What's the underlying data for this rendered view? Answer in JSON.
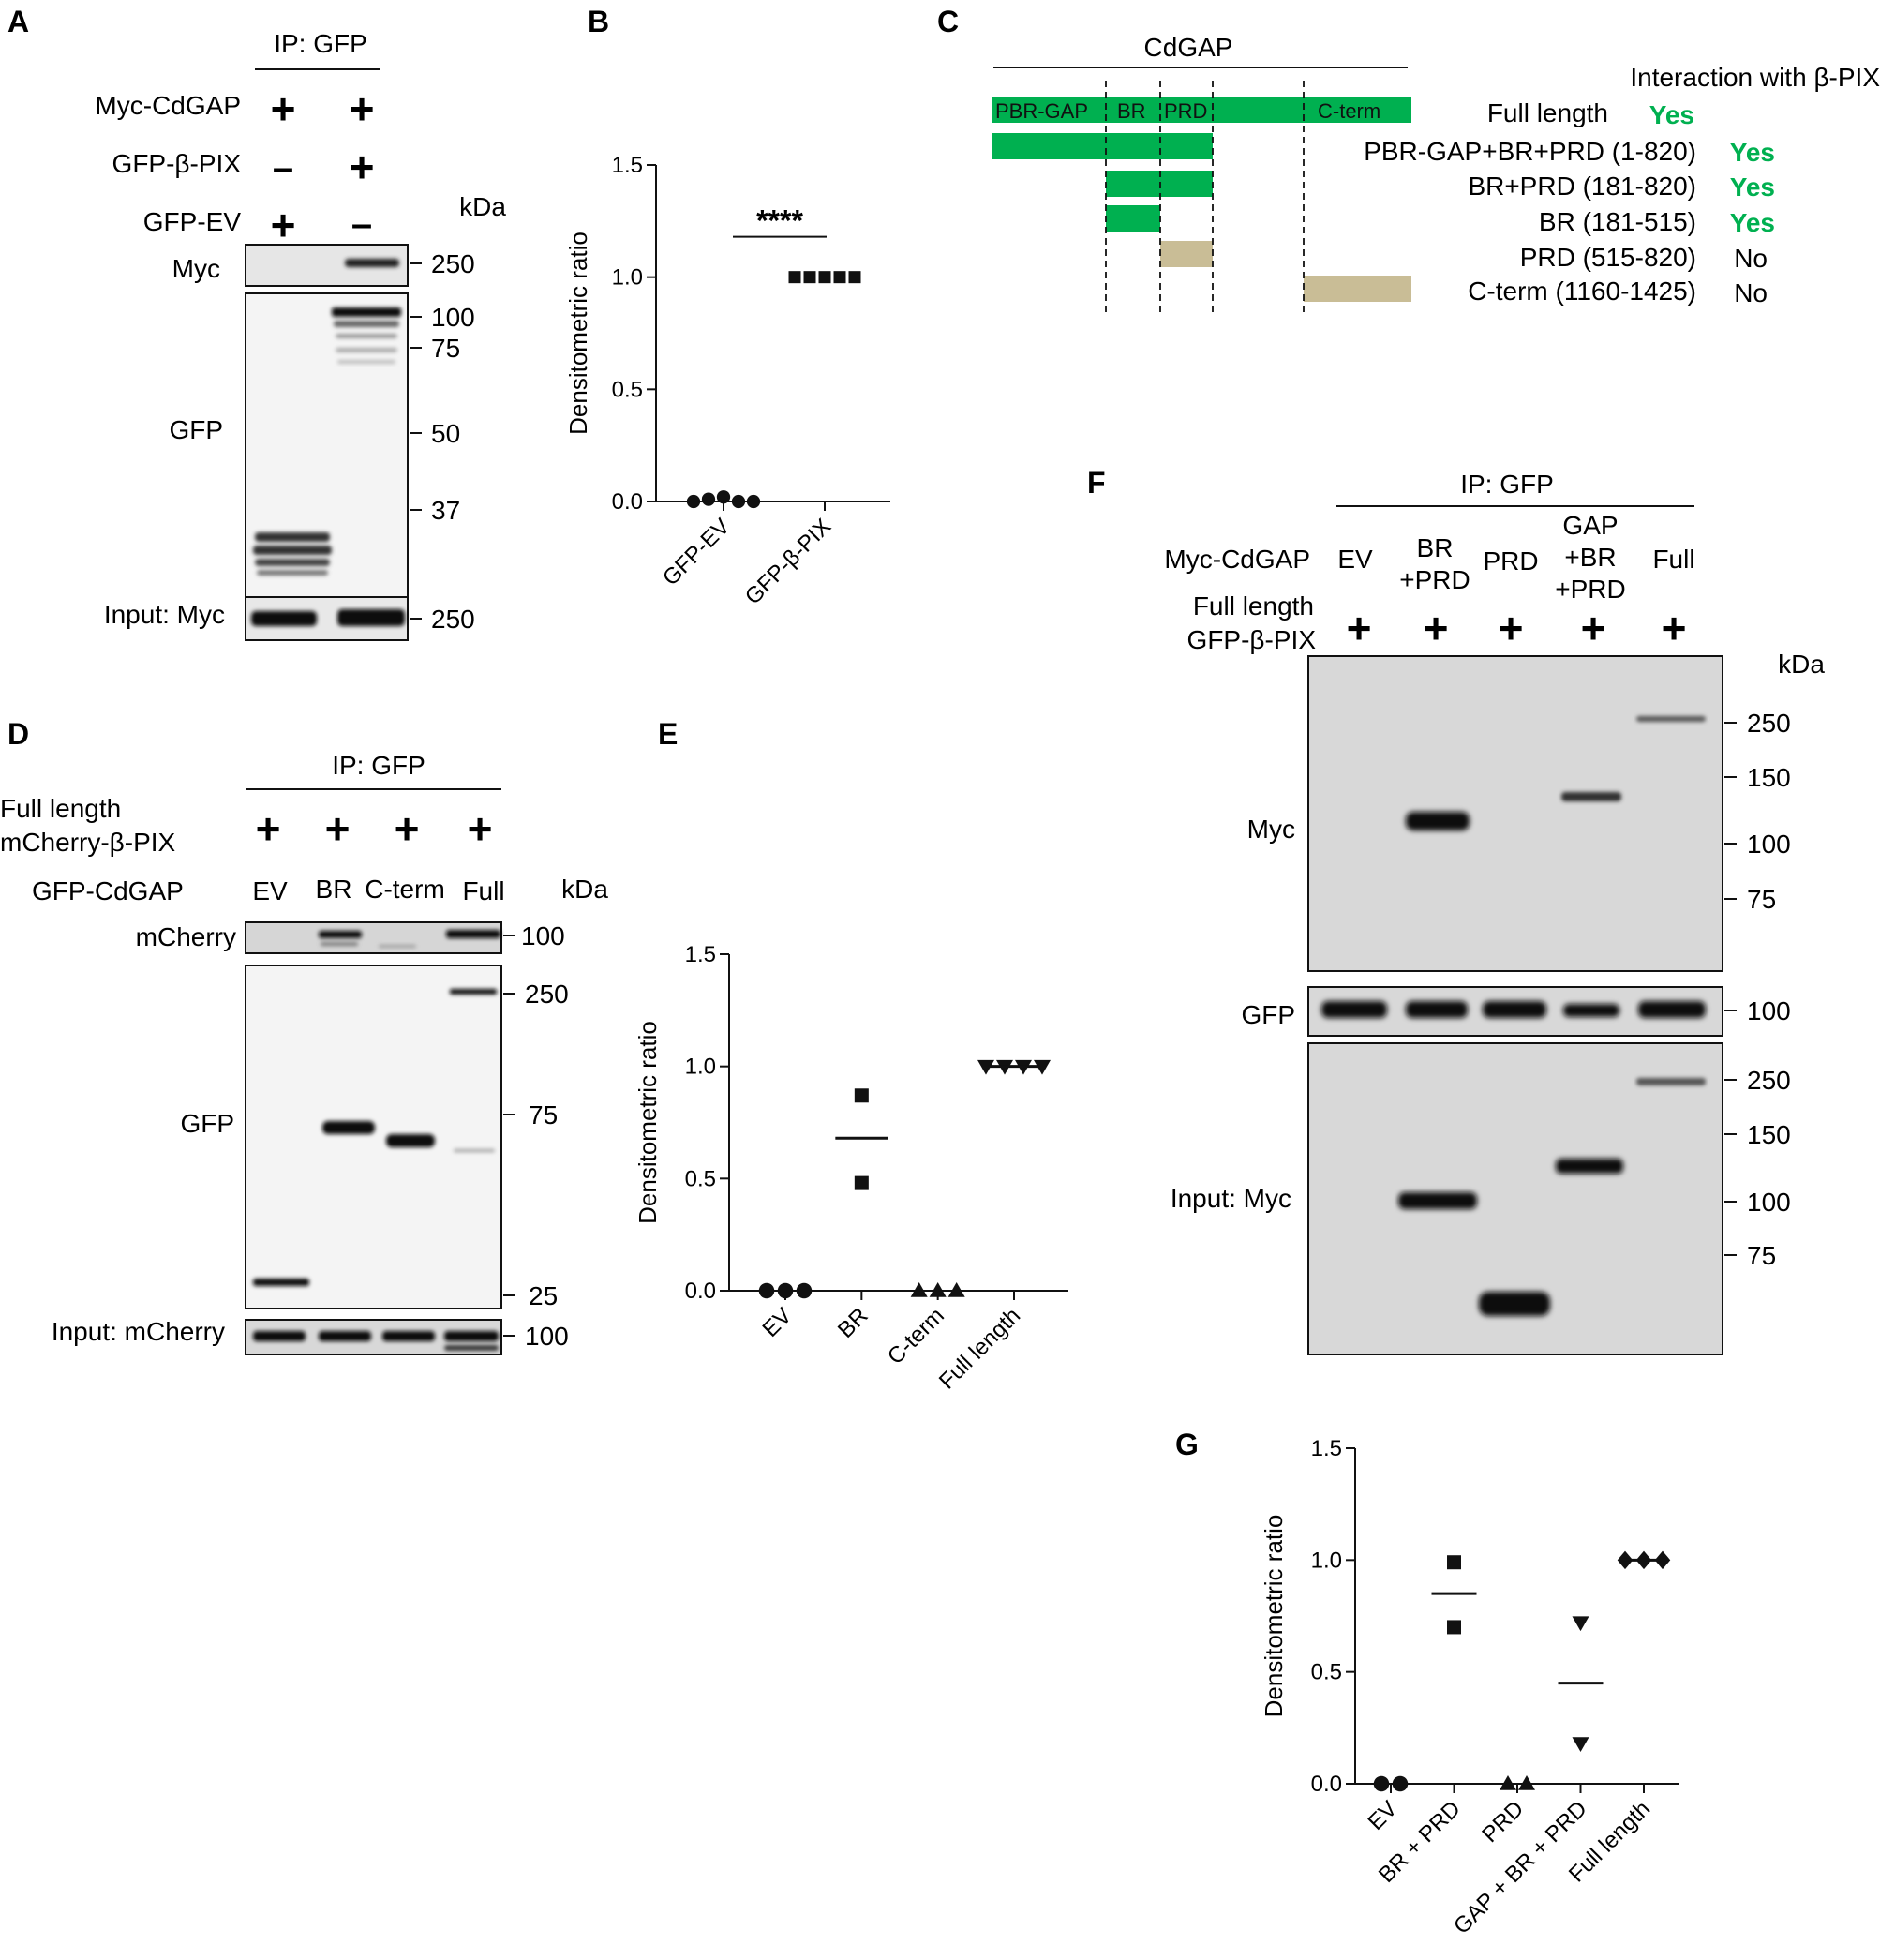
{
  "panels": {
    "A": {
      "letter": "A",
      "ip": "IP: GFP",
      "rows": [
        {
          "label": "Myc-CdGAP",
          "signs": [
            "+",
            "+"
          ]
        },
        {
          "label": "GFP-β-PIX",
          "signs": [
            "–",
            "+"
          ]
        },
        {
          "label": "GFP-EV",
          "signs": [
            "+",
            "–"
          ]
        }
      ],
      "kda": "kDa",
      "blots": [
        {
          "label": "Myc",
          "markers": [
            "250"
          ]
        },
        {
          "label": "GFP",
          "markers": [
            "100",
            "75",
            "50",
            "37"
          ]
        },
        {
          "label": "Input: Myc",
          "markers": [
            "250"
          ]
        }
      ]
    },
    "C": {
      "letter": "C",
      "title": "CdGAP",
      "header": "Interaction with β-PIX",
      "domains": [
        "PBR-GAP",
        "BR",
        "PRD",
        "C-term"
      ],
      "constructs": [
        {
          "name": "Full length",
          "result": "Yes"
        },
        {
          "name": "PBR-GAP+BR+PRD (1-820)",
          "result": "Yes"
        },
        {
          "name": "BR+PRD (181-820)",
          "result": "Yes"
        },
        {
          "name": "BR (181-515)",
          "result": "Yes"
        },
        {
          "name": "PRD (515-820)",
          "result": "No"
        },
        {
          "name": "C-term (1160-1425)",
          "result": "No"
        }
      ],
      "colors": {
        "yes": "#00b050",
        "no": "#c9bd96"
      }
    },
    "D": {
      "letter": "D",
      "ip": "IP: GFP",
      "full_length": "Full length",
      "pix": "mCherry-β-PIX",
      "signs": [
        "+",
        "+",
        "+",
        "+"
      ],
      "cdgap": "GFP-CdGAP",
      "lanes": [
        "EV",
        "BR",
        "C-term",
        "Full"
      ],
      "kda": "kDa",
      "blots": [
        {
          "label": "mCherry",
          "markers": [
            "100"
          ]
        },
        {
          "label": "GFP",
          "markers": [
            "250",
            "75",
            "25"
          ]
        },
        {
          "label": "Input: mCherry",
          "markers": [
            "100"
          ]
        }
      ]
    },
    "F": {
      "letter": "F",
      "ip": "IP: GFP",
      "cdgap": "Myc-CdGAP",
      "lanes": [
        "EV",
        "BR\n+PRD",
        "PRD",
        "GAP\n+BR\n+PRD",
        "Full"
      ],
      "full_length": "Full length",
      "pix": "GFP-β-PIX",
      "signs": [
        "+",
        "+",
        "+",
        "+",
        "+"
      ],
      "kda": "kDa",
      "blots": [
        {
          "label": "Myc",
          "markers": [
            "250",
            "150",
            "100",
            "75"
          ]
        },
        {
          "label": "GFP",
          "markers": [
            "100"
          ]
        },
        {
          "label": "Input: Myc",
          "markers": [
            "250",
            "150",
            "100",
            "75"
          ]
        }
      ]
    }
  },
  "chart_data": [
    {
      "panel": "B",
      "type": "scatter",
      "categories": [
        "GFP-EV",
        "GFP-β-PIX"
      ],
      "series": [
        {
          "marker": "circle",
          "values": [
            0.0,
            0.01,
            0.02,
            0.0,
            0.0
          ]
        },
        {
          "marker": "square",
          "values": [
            1.0,
            1.0,
            1.0,
            1.0,
            1.0
          ]
        }
      ],
      "ylabel": "Densitometric ratio",
      "ylim": [
        0,
        1.5
      ],
      "yticks": [
        "0.0",
        "0.5",
        "1.0",
        "1.5"
      ],
      "significance": "****"
    },
    {
      "panel": "E",
      "type": "scatter",
      "categories": [
        "EV",
        "BR",
        "C-term",
        "Full length"
      ],
      "series": [
        {
          "marker": "circle",
          "values": [
            0,
            0,
            0
          ],
          "mean": 0
        },
        {
          "marker": "square",
          "values": [
            0.87,
            0.48
          ],
          "mean": 0.68
        },
        {
          "marker": "triangle",
          "values": [
            0,
            0,
            0
          ],
          "mean": 0
        },
        {
          "marker": "triangle-down",
          "values": [
            1.0,
            1.0,
            1.0,
            1.0
          ],
          "mean": 1.0
        }
      ],
      "ylabel": "Densitometric ratio",
      "ylim": [
        0,
        1.5
      ],
      "yticks": [
        "0.0",
        "0.5",
        "1.0",
        "1.5"
      ]
    },
    {
      "panel": "G",
      "type": "scatter",
      "categories": [
        "EV",
        "BR + PRD",
        "PRD",
        "GAP + BR + PRD",
        "Full length"
      ],
      "series": [
        {
          "marker": "circle",
          "values": [
            0,
            0
          ],
          "mean": 0
        },
        {
          "marker": "square",
          "values": [
            0.99,
            0.7
          ],
          "mean": 0.85
        },
        {
          "marker": "triangle",
          "values": [
            0,
            0
          ],
          "mean": 0
        },
        {
          "marker": "triangle-down",
          "values": [
            0.72,
            0.18
          ],
          "mean": 0.45
        },
        {
          "marker": "diamond",
          "values": [
            1.0,
            1.0,
            1.0
          ],
          "mean": 1.0
        }
      ],
      "ylabel": "Densitometric ratio",
      "ylim": [
        0,
        1.5
      ],
      "yticks": [
        "0.0",
        "0.5",
        "1.0",
        "1.5"
      ]
    }
  ]
}
